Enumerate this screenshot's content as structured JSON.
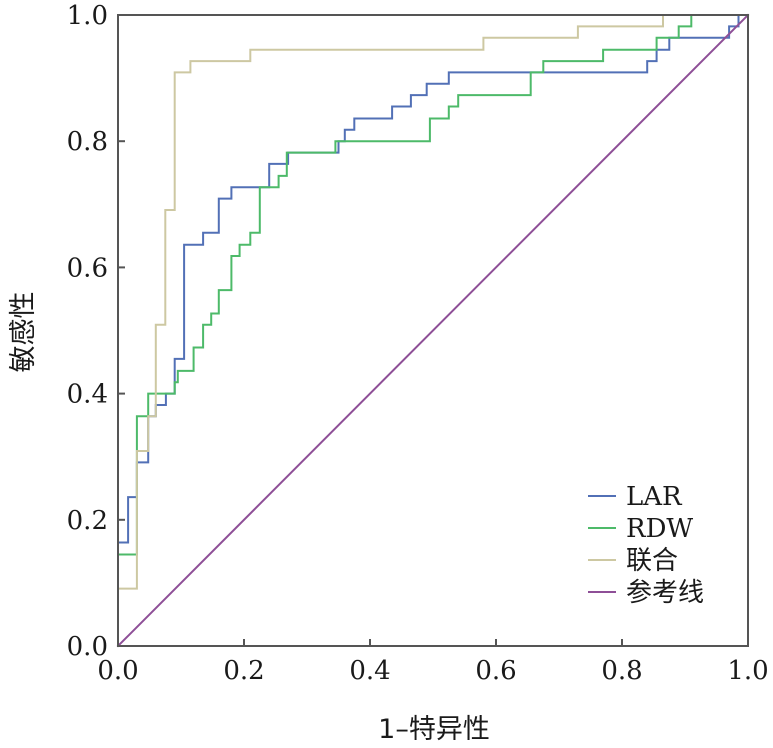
{
  "chart_data": {
    "type": "line",
    "title": "",
    "xlabel": "1–特异性",
    "ylabel": "敏感性",
    "xlim": [
      0,
      1
    ],
    "ylim": [
      0,
      1
    ],
    "grid": false,
    "legend_position": "bottom-right",
    "x_ticks": [
      0.0,
      0.2,
      0.4,
      0.6,
      0.8,
      1.0
    ],
    "y_ticks": [
      0.0,
      0.2,
      0.4,
      0.6,
      0.8,
      1.0
    ],
    "x_tick_labels": [
      "0.0",
      "0.2",
      "0.4",
      "0.6",
      "0.8",
      "1.0"
    ],
    "y_tick_labels": [
      "0.0",
      "0.2",
      "0.4",
      "0.6",
      "0.8",
      "1.0"
    ],
    "series": [
      {
        "name": "LAR",
        "color": "#5270b6",
        "points": [
          [
            0,
            0
          ],
          [
            0,
            0.164
          ],
          [
            0.016,
            0.164
          ],
          [
            0.016,
            0.236
          ],
          [
            0.03,
            0.236
          ],
          [
            0.03,
            0.291
          ],
          [
            0.048,
            0.291
          ],
          [
            0.048,
            0.364
          ],
          [
            0.06,
            0.364
          ],
          [
            0.06,
            0.382
          ],
          [
            0.076,
            0.382
          ],
          [
            0.076,
            0.4
          ],
          [
            0.09,
            0.4
          ],
          [
            0.09,
            0.455
          ],
          [
            0.105,
            0.455
          ],
          [
            0.105,
            0.636
          ],
          [
            0.135,
            0.636
          ],
          [
            0.135,
            0.655
          ],
          [
            0.16,
            0.655
          ],
          [
            0.16,
            0.709
          ],
          [
            0.18,
            0.709
          ],
          [
            0.18,
            0.727
          ],
          [
            0.24,
            0.727
          ],
          [
            0.24,
            0.764
          ],
          [
            0.26,
            0.764
          ],
          [
            0.26,
            0.764
          ],
          [
            0.27,
            0.764
          ],
          [
            0.27,
            0.782
          ],
          [
            0.35,
            0.782
          ],
          [
            0.35,
            0.8
          ],
          [
            0.36,
            0.8
          ],
          [
            0.36,
            0.818
          ],
          [
            0.375,
            0.818
          ],
          [
            0.375,
            0.836
          ],
          [
            0.435,
            0.836
          ],
          [
            0.435,
            0.855
          ],
          [
            0.465,
            0.855
          ],
          [
            0.465,
            0.873
          ],
          [
            0.49,
            0.873
          ],
          [
            0.49,
            0.891
          ],
          [
            0.525,
            0.891
          ],
          [
            0.525,
            0.909
          ],
          [
            0.84,
            0.909
          ],
          [
            0.84,
            0.927
          ],
          [
            0.855,
            0.927
          ],
          [
            0.855,
            0.945
          ],
          [
            0.875,
            0.945
          ],
          [
            0.875,
            0.964
          ],
          [
            0.97,
            0.964
          ],
          [
            0.97,
            0.982
          ],
          [
            0.985,
            0.982
          ],
          [
            0.985,
            1.0
          ],
          [
            1.0,
            1.0
          ]
        ]
      },
      {
        "name": "RDW",
        "color": "#4dba69",
        "points": [
          [
            0,
            0
          ],
          [
            0,
            0.145
          ],
          [
            0.03,
            0.145
          ],
          [
            0.03,
            0.364
          ],
          [
            0.048,
            0.364
          ],
          [
            0.048,
            0.4
          ],
          [
            0.09,
            0.4
          ],
          [
            0.09,
            0.418
          ],
          [
            0.095,
            0.418
          ],
          [
            0.095,
            0.436
          ],
          [
            0.12,
            0.436
          ],
          [
            0.12,
            0.473
          ],
          [
            0.135,
            0.473
          ],
          [
            0.135,
            0.509
          ],
          [
            0.148,
            0.509
          ],
          [
            0.148,
            0.527
          ],
          [
            0.16,
            0.527
          ],
          [
            0.16,
            0.564
          ],
          [
            0.18,
            0.564
          ],
          [
            0.18,
            0.618
          ],
          [
            0.193,
            0.618
          ],
          [
            0.193,
            0.636
          ],
          [
            0.21,
            0.636
          ],
          [
            0.21,
            0.655
          ],
          [
            0.225,
            0.655
          ],
          [
            0.225,
            0.727
          ],
          [
            0.255,
            0.727
          ],
          [
            0.255,
            0.745
          ],
          [
            0.268,
            0.745
          ],
          [
            0.268,
            0.782
          ],
          [
            0.345,
            0.782
          ],
          [
            0.345,
            0.8
          ],
          [
            0.495,
            0.8
          ],
          [
            0.495,
            0.836
          ],
          [
            0.525,
            0.836
          ],
          [
            0.525,
            0.855
          ],
          [
            0.54,
            0.855
          ],
          [
            0.54,
            0.873
          ],
          [
            0.655,
            0.873
          ],
          [
            0.655,
            0.909
          ],
          [
            0.675,
            0.909
          ],
          [
            0.675,
            0.927
          ],
          [
            0.77,
            0.927
          ],
          [
            0.77,
            0.945
          ],
          [
            0.855,
            0.945
          ],
          [
            0.855,
            0.964
          ],
          [
            0.89,
            0.964
          ],
          [
            0.89,
            0.982
          ],
          [
            0.91,
            0.982
          ],
          [
            0.91,
            1.0
          ],
          [
            1.0,
            1.0
          ]
        ]
      },
      {
        "name": "联合",
        "color": "#cdc8a2",
        "points": [
          [
            0,
            0
          ],
          [
            0,
            0.091
          ],
          [
            0.03,
            0.091
          ],
          [
            0.03,
            0.309
          ],
          [
            0.048,
            0.309
          ],
          [
            0.048,
            0.364
          ],
          [
            0.06,
            0.364
          ],
          [
            0.06,
            0.509
          ],
          [
            0.075,
            0.509
          ],
          [
            0.075,
            0.691
          ],
          [
            0.09,
            0.691
          ],
          [
            0.09,
            0.909
          ],
          [
            0.115,
            0.909
          ],
          [
            0.115,
            0.927
          ],
          [
            0.21,
            0.927
          ],
          [
            0.21,
            0.945
          ],
          [
            0.58,
            0.945
          ],
          [
            0.58,
            0.964
          ],
          [
            0.73,
            0.964
          ],
          [
            0.73,
            0.982
          ],
          [
            0.865,
            0.982
          ],
          [
            0.865,
            1.0
          ],
          [
            1.0,
            1.0
          ]
        ]
      },
      {
        "name": "参考线",
        "color": "#8e4f97",
        "points": [
          [
            0,
            0
          ],
          [
            1,
            1
          ]
        ]
      }
    ]
  }
}
